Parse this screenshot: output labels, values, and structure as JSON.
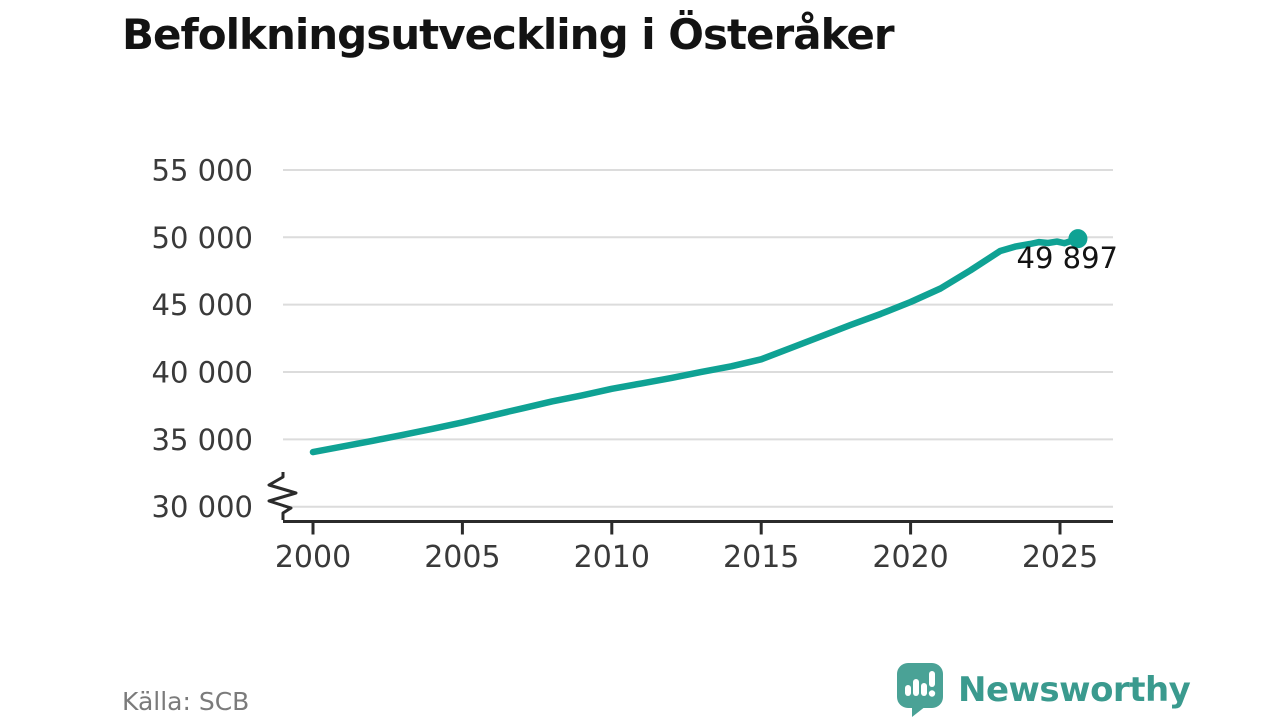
{
  "title": "Befolkningsutveckling i Österåker",
  "source": "Källa: SCB",
  "logo": {
    "text": "Newsworthy",
    "text_color": "#3a9a8e",
    "icon_color": "#4aa296"
  },
  "colors": {
    "line": "#0fa294",
    "grid": "#dcdcdc",
    "axis": "#2b2b2b",
    "tick_label": "#3a3a3a",
    "end_label": "#131313"
  },
  "chart_data": {
    "type": "line",
    "title": "Befolkningsutveckling i Österåker",
    "xlabel": "",
    "ylabel": "",
    "grid": "horizontal",
    "legend": "none",
    "y_axis_break": true,
    "ylim_shown": [
      30000,
      55000
    ],
    "xlim": [
      1999,
      2026.9
    ],
    "x_ticks": [
      {
        "v": 2000,
        "label": "2000"
      },
      {
        "v": 2005,
        "label": "2005"
      },
      {
        "v": 2010,
        "label": "2010"
      },
      {
        "v": 2015,
        "label": "2015"
      },
      {
        "v": 2020,
        "label": "2020"
      },
      {
        "v": 2025,
        "label": "2025"
      }
    ],
    "y_ticks": [
      {
        "v": 30000,
        "label": "30 000"
      },
      {
        "v": 35000,
        "label": "35 000"
      },
      {
        "v": 40000,
        "label": "40 000"
      },
      {
        "v": 45000,
        "label": "45 000"
      },
      {
        "v": 50000,
        "label": "50 000"
      },
      {
        "v": 55000,
        "label": "55 000"
      }
    ],
    "series": [
      {
        "name": "population",
        "color": "#0fa294",
        "points": [
          [
            2000,
            34050
          ],
          [
            2001,
            34480
          ],
          [
            2002,
            34890
          ],
          [
            2003,
            35330
          ],
          [
            2004,
            35780
          ],
          [
            2005,
            36260
          ],
          [
            2006,
            36780
          ],
          [
            2007,
            37300
          ],
          [
            2008,
            37820
          ],
          [
            2009,
            38265
          ],
          [
            2010,
            38750
          ],
          [
            2011,
            39155
          ],
          [
            2012,
            39565
          ],
          [
            2013,
            40010
          ],
          [
            2014,
            40420
          ],
          [
            2015,
            40940
          ],
          [
            2016,
            41790
          ],
          [
            2017,
            42640
          ],
          [
            2018,
            43495
          ],
          [
            2019,
            44310
          ],
          [
            2020,
            45200
          ],
          [
            2021,
            46200
          ],
          [
            2022,
            47540
          ],
          [
            2023,
            48985
          ],
          [
            2023.5,
            49310
          ],
          [
            2024,
            49505
          ],
          [
            2024.3,
            49640
          ],
          [
            2024.6,
            49580
          ],
          [
            2024.9,
            49680
          ],
          [
            2025.15,
            49560
          ],
          [
            2025.6,
            49897
          ]
        ]
      }
    ],
    "end_annotation": {
      "label": "49 897",
      "x": 2025.6,
      "value": 49897
    }
  }
}
